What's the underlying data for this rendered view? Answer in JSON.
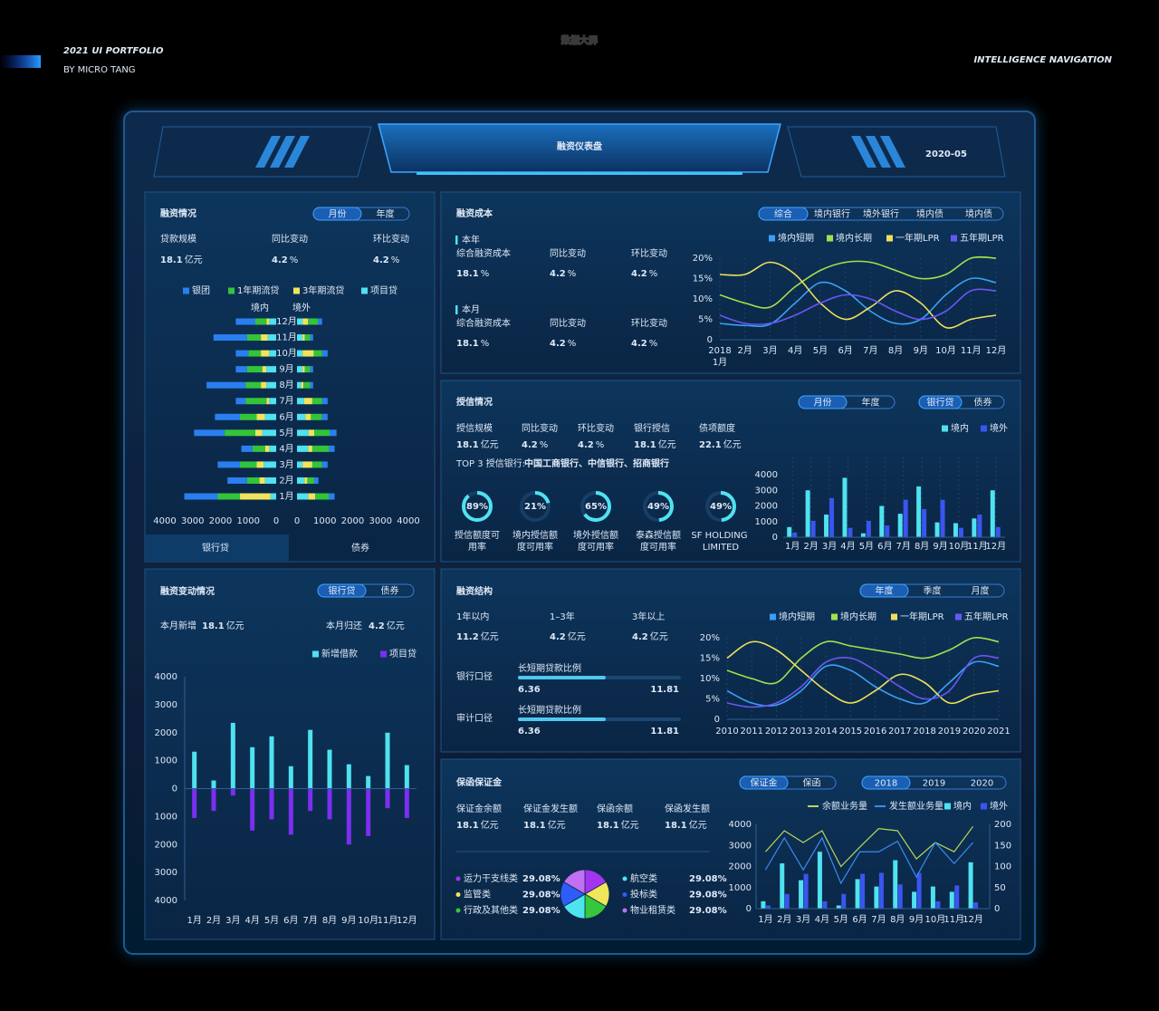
{
  "header": {
    "portfolio": "2021 UI PORTFOLIO",
    "author": "BY MICRO TANG",
    "watermark": "数据大屏",
    "tagline": "INTELLIGENCE NAVIGATION"
  },
  "dashboard": {
    "title": "融资仪表盘",
    "date": "2020-05"
  },
  "financing_status": {
    "title": "融资情况",
    "tabs": {
      "options": [
        "月份",
        "年度"
      ],
      "active": 0
    },
    "stats": [
      {
        "label": "贷款规模",
        "value": 18.1,
        "unit": "亿元"
      },
      {
        "label": "同比变动",
        "value": 4.2,
        "unit": "%"
      },
      {
        "label": "环比变动",
        "value": 4.2,
        "unit": "%"
      }
    ],
    "chart_data": {
      "type": "butterfly",
      "side_labels": [
        "境内",
        "境外"
      ],
      "categories": [
        "1月",
        "2月",
        "3月",
        "4月",
        "5月",
        "6月",
        "7月",
        "8月",
        "9月",
        "10月",
        "11月",
        "12月"
      ],
      "xlim": [
        0,
        4000
      ],
      "xticks": [
        0,
        1000,
        2000,
        3000,
        4000
      ],
      "series": [
        {
          "name": "银团",
          "color": "#2a7ff0",
          "values_left": [
            1200,
            700,
            800,
            400,
            1100,
            900,
            350,
            1400,
            400,
            450,
            1200,
            700
          ],
          "values_right": [
            200,
            150,
            200,
            200,
            250,
            200,
            200,
            100,
            100,
            200,
            100,
            150
          ]
        },
        {
          "name": "1年期流贷",
          "color": "#34c43a",
          "values_left": [
            800,
            450,
            600,
            450,
            1100,
            600,
            750,
            550,
            550,
            450,
            500,
            400
          ],
          "values_right": [
            500,
            250,
            350,
            600,
            550,
            400,
            350,
            250,
            200,
            300,
            200,
            350
          ]
        },
        {
          "name": "3年期流贷",
          "color": "#f0e45c",
          "values_left": [
            1100,
            200,
            250,
            150,
            250,
            300,
            100,
            200,
            150,
            300,
            250,
            100
          ],
          "values_right": [
            250,
            100,
            350,
            150,
            200,
            200,
            300,
            80,
            80,
            400,
            80,
            200
          ]
        },
        {
          "name": "项目贷",
          "color": "#4fe2f0",
          "values_left": [
            200,
            400,
            450,
            250,
            500,
            400,
            250,
            350,
            350,
            250,
            300,
            250
          ],
          "values_right": [
            400,
            270,
            200,
            400,
            420,
            300,
            250,
            150,
            200,
            200,
            200,
            200
          ]
        }
      ]
    },
    "bottom_tabs": {
      "options": [
        "银行贷",
        "债券"
      ],
      "active": 0
    }
  },
  "financing_cost": {
    "title": "融资成本",
    "tabs": {
      "options": [
        "综合",
        "境内银行",
        "境外银行",
        "境内债",
        "境内债"
      ],
      "active": 0
    },
    "sections": [
      {
        "heading": "本年",
        "stats": [
          {
            "label": "综合融资成本",
            "value": 18.1,
            "unit": "%"
          },
          {
            "label": "同比变动",
            "value": 4.2,
            "unit": "%"
          },
          {
            "label": "环比变动",
            "value": 4.2,
            "unit": "%"
          }
        ]
      },
      {
        "heading": "本月",
        "stats": [
          {
            "label": "综合融资成本",
            "value": 18.1,
            "unit": "%"
          },
          {
            "label": "同比变动",
            "value": 4.2,
            "unit": "%"
          },
          {
            "label": "环比变动",
            "value": 4.2,
            "unit": "%"
          }
        ]
      }
    ],
    "chart_data": {
      "type": "line",
      "year_label": "2018",
      "categories": [
        "1月",
        "2月",
        "3月",
        "4月",
        "5月",
        "6月",
        "7月",
        "8月",
        "9月",
        "10月",
        "11月",
        "12月"
      ],
      "ylim": [
        0,
        20
      ],
      "yticks": [
        0,
        {
          "value": 5,
          "label": "5%"
        },
        {
          "value": 10,
          "label": "10%"
        },
        {
          "value": 15,
          "label": "15%"
        },
        {
          "value": 20,
          "label": "20%"
        }
      ],
      "series": [
        {
          "name": "境内短期",
          "color": "#3aa0f5",
          "values": [
            4,
            3.5,
            3.8,
            9,
            14,
            12,
            7,
            4,
            5,
            11,
            15,
            14
          ]
        },
        {
          "name": "境内长期",
          "color": "#a4e04c",
          "values": [
            11,
            9,
            8,
            13,
            17,
            19,
            19,
            17,
            15,
            16,
            20,
            20
          ]
        },
        {
          "name": "一年期LPR",
          "color": "#f0e05a",
          "values": [
            16,
            16,
            19,
            16,
            9,
            5,
            8,
            12,
            9,
            3,
            5,
            6
          ]
        },
        {
          "name": "五年期LPR",
          "color": "#6a56f5",
          "values": [
            6,
            4,
            4,
            6,
            9,
            11,
            10,
            7,
            5,
            7,
            12,
            12
          ]
        }
      ]
    }
  },
  "credit": {
    "title": "授信情况",
    "tabs": [
      {
        "options": [
          "月份",
          "年度"
        ],
        "active": 0
      },
      {
        "options": [
          "银行贷",
          "债券"
        ],
        "active": 0
      }
    ],
    "stats": [
      {
        "label": "授信规模",
        "value": 18.1,
        "unit": "亿元"
      },
      {
        "label": "同比变动",
        "value": 4.2,
        "unit": "%"
      },
      {
        "label": "环比变动",
        "value": 4.2,
        "unit": "%"
      },
      {
        "label": "银行授信",
        "value": 18.1,
        "unit": "亿元"
      },
      {
        "label": "债项额度",
        "value": 22.1,
        "unit": "亿元"
      }
    ],
    "top_banks": {
      "label": "TOP 3 授信银行:",
      "value": "中国工商银行、中信银行、招商银行"
    },
    "chart_data": [
      {
        "type": "ring",
        "ylim": [
          0,
          100
        ],
        "color": "#4fe2f0",
        "categories": [
          "授信额度可用率",
          "境内授信额度可用率",
          "境外授信额度可用率",
          "泰森授信额度可用率",
          "SF HOLDING LIMITED"
        ],
        "values": [
          89,
          21,
          65,
          49,
          49
        ],
        "value_labels": [
          "89%",
          "21%",
          "65%",
          "49%",
          "49%"
        ]
      },
      {
        "type": "bar",
        "categories": [
          "1月",
          "2月",
          "3月",
          "4月",
          "5月",
          "6月",
          "7月",
          "8月",
          "9月",
          "10月",
          "11月",
          "12月"
        ],
        "ylim": [
          0,
          4000
        ],
        "yticks": [
          0,
          1000,
          2000,
          3000,
          4000
        ],
        "series": [
          {
            "name": "境内",
            "color": "#4fe2f0",
            "values": [
              650,
              3000,
              1450,
              3800,
              250,
              2000,
              1500,
              3250,
              950,
              900,
              1200,
              3000
            ]
          },
          {
            "name": "境外",
            "color": "#3a55f0",
            "values": [
              300,
              1050,
              2500,
              600,
              1050,
              750,
              2400,
              1800,
              2400,
              600,
              1450,
              650
            ]
          }
        ]
      }
    ]
  },
  "financing_change": {
    "title": "融资变动情况",
    "tabs": {
      "options": [
        "银行贷",
        "债券"
      ],
      "active": 0
    },
    "stats": [
      {
        "label": "本月新增",
        "value": 18.1,
        "unit": "亿元"
      },
      {
        "label": "本月归还",
        "value": 4.2,
        "unit": "亿元"
      }
    ],
    "chart_data": {
      "type": "diverging_bar",
      "categories": [
        "1月",
        "2月",
        "3月",
        "4月",
        "5月",
        "6月",
        "7月",
        "8月",
        "9月",
        "10月",
        "11月",
        "12月"
      ],
      "ylim": [
        -4000,
        4000
      ],
      "yticks": [
        4000,
        3000,
        2000,
        1000,
        0,
        {
          "value": -1000,
          "label": "1000"
        },
        {
          "value": -2000,
          "label": "2000"
        },
        {
          "value": -3000,
          "label": "3000"
        },
        {
          "value": -4000,
          "label": "4000"
        }
      ],
      "series": [
        {
          "name": "新增借款",
          "color": "#4fe2f0",
          "values": [
            1320,
            290,
            2350,
            1480,
            1870,
            800,
            2100,
            1390,
            870,
            450,
            2000,
            840
          ]
        },
        {
          "name": "项目贷",
          "color": "#7b2ff0",
          "values": [
            -1050,
            -800,
            -250,
            -1500,
            -1100,
            -1650,
            -800,
            -1100,
            -2000,
            -1700,
            -700,
            -1050
          ]
        }
      ]
    }
  },
  "structure": {
    "title": "融资结构",
    "tabs": {
      "options": [
        "年度",
        "季度",
        "月度"
      ],
      "active": 0
    },
    "stats": [
      {
        "label": "1年以内",
        "value": 11.2,
        "unit": "亿元"
      },
      {
        "label": "1–3年",
        "value": 4.2,
        "unit": "亿元"
      },
      {
        "label": "3年以上",
        "value": 4.2,
        "unit": "亿元"
      }
    ],
    "ratios": [
      {
        "label": "银行口径",
        "caption": "长短期贷款比例",
        "value": 6.36,
        "total": 11.81
      },
      {
        "label": "审计口径",
        "caption": "长短期贷款比例",
        "value": 6.36,
        "total": 11.81
      }
    ],
    "chart_data": {
      "type": "line",
      "categories": [
        "2010",
        "2011",
        "2012",
        "2013",
        "2014",
        "2015",
        "2016",
        "2017",
        "2018",
        "2019",
        "2020",
        "2021"
      ],
      "ylim": [
        0,
        20
      ],
      "yticks": [
        0,
        {
          "value": 5,
          "label": "5%"
        },
        {
          "value": 10,
          "label": "10%"
        },
        {
          "value": 15,
          "label": "15%"
        },
        {
          "value": 20,
          "label": "20%"
        }
      ],
      "series": [
        {
          "name": "境内短期",
          "color": "#3aa0f5",
          "values": [
            7,
            4,
            3.5,
            7,
            13,
            12,
            8,
            5,
            4,
            9,
            14,
            13
          ]
        },
        {
          "name": "境内长期",
          "color": "#a4e04c",
          "values": [
            12,
            10,
            9,
            15,
            19,
            18,
            17,
            16,
            15,
            17,
            20,
            19
          ]
        },
        {
          "name": "一年期LPR",
          "color": "#f0e05a",
          "values": [
            15,
            19,
            17,
            12,
            7,
            4,
            7,
            11,
            9,
            4,
            6,
            7
          ]
        },
        {
          "name": "五年期LPR",
          "color": "#6a56f5",
          "values": [
            4,
            3,
            4,
            8,
            14,
            15,
            12,
            8,
            5,
            7,
            15,
            15
          ]
        }
      ]
    }
  },
  "guarantee": {
    "title": "保函保证金",
    "tabs": [
      {
        "options": [
          "保证金",
          "保函"
        ],
        "active": 0
      },
      {
        "options": [
          "2018",
          "2019",
          "2020"
        ],
        "active": 0
      }
    ],
    "stats": [
      {
        "label": "保证金余额",
        "value": 18.1,
        "unit": "亿元"
      },
      {
        "label": "保证金发生额",
        "value": 18.1,
        "unit": "亿元"
      },
      {
        "label": "保函余额",
        "value": 18.1,
        "unit": "亿元"
      },
      {
        "label": "保函发生额",
        "value": 18.1,
        "unit": "亿元"
      }
    ],
    "chart_data": [
      {
        "type": "pie",
        "categories": [
          "运力干支线类",
          "监管类",
          "行政及其他类",
          "航空类",
          "投标类",
          "物业租赁类"
        ],
        "values": [
          29.08,
          29.08,
          29.08,
          29.08,
          29.08,
          29.08
        ],
        "value_labels": [
          "29.08%",
          "29.08%",
          "29.08%",
          "29.08%",
          "29.08%",
          "29.08%"
        ],
        "colors": [
          "#a335f0",
          "#f0e65a",
          "#35c83a",
          "#4de4f0",
          "#2f5cf6",
          "#c070f0"
        ]
      },
      {
        "type": "bar_line",
        "categories": [
          "1月",
          "2月",
          "3月",
          "4月",
          "5月",
          "6月",
          "7月",
          "8月",
          "9月",
          "10月",
          "11月",
          "12月"
        ],
        "ylim": [
          0,
          4000
        ],
        "yticks": [
          0,
          1000,
          2000,
          3000,
          4000
        ],
        "y2lim": [
          0,
          200
        ],
        "y2ticks": [
          0,
          50,
          100,
          150,
          200
        ],
        "series": [
          {
            "name": "余额业务量",
            "type": "line",
            "axis": "y2",
            "color": "#b8d85a",
            "values": [
              135,
              185,
              157,
              185,
              100,
              146,
              190,
              185,
              118,
              157,
              135,
              195
            ]
          },
          {
            "name": "发生额业务量",
            "type": "line",
            "axis": "y2",
            "color": "#3a8cf0",
            "values": [
              92,
              168,
              92,
              168,
              60,
              135,
              135,
              160,
              75,
              157,
              107,
              157
            ]
          },
          {
            "name": "境内",
            "type": "bar",
            "color": "#4fe2f0",
            "values": [
              350,
              2150,
              1350,
              2700,
              150,
              1400,
              1050,
              2300,
              800,
              1050,
              800,
              2200
            ]
          },
          {
            "name": "境外",
            "type": "bar",
            "color": "#3a55f0",
            "values": [
              150,
              700,
              1650,
              350,
              700,
              1650,
              1700,
              1150,
              1700,
              350,
              1100,
              300
            ]
          }
        ]
      }
    ]
  }
}
